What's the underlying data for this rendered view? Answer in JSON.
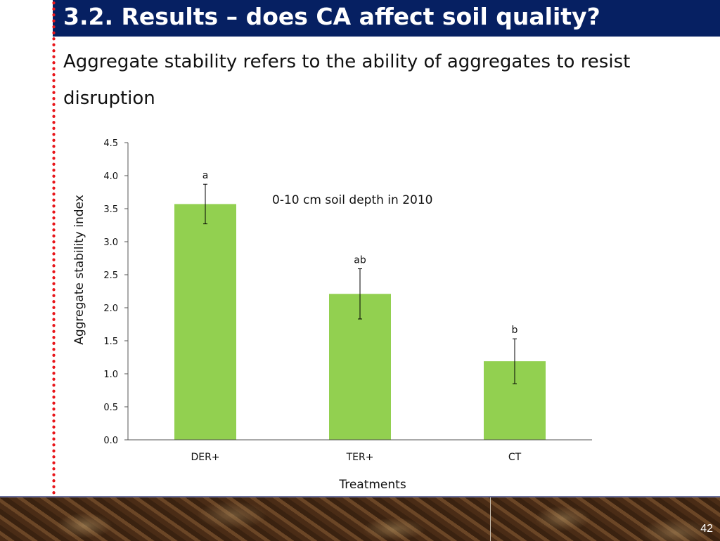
{
  "slide": {
    "title": "3.2. Results – does CA affect soil quality?",
    "subtitle": "Aggregate stability refers to the ability of aggregates to resist disruption",
    "page_number": "42"
  },
  "colors": {
    "title_bar": "#062062",
    "bar": "#92d050",
    "dots": "#e8161b"
  },
  "chart_data": {
    "type": "bar",
    "title": "",
    "annotation": "0-10 cm soil depth in 2010",
    "categories": [
      "DER+",
      "TER+",
      "CT"
    ],
    "values": [
      3.57,
      2.21,
      1.19
    ],
    "error": [
      0.3,
      0.38,
      0.34
    ],
    "significance_labels": [
      "a",
      "ab",
      "b"
    ],
    "xlabel": "Treatments",
    "ylabel": "Aggregate stability index",
    "ylim": [
      0,
      4.5
    ],
    "yticks": [
      "0.0",
      "0.5",
      "1.0",
      "1.5",
      "2.0",
      "2.5",
      "3.0",
      "3.5",
      "4.0",
      "4.5"
    ],
    "grid": false
  }
}
